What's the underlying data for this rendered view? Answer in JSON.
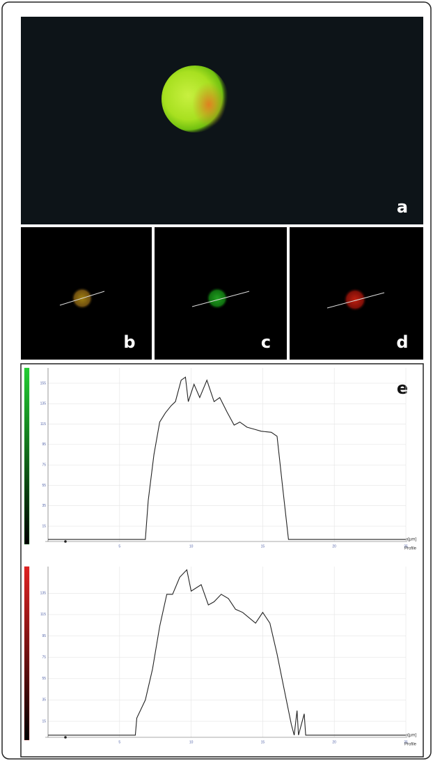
{
  "panels": {
    "a": "a",
    "b": "b",
    "c": "c",
    "d": "d",
    "e": "e"
  },
  "chart_data": [
    {
      "type": "line",
      "color": "#222222",
      "x": [
        0,
        6.8,
        7.0,
        7.4,
        7.8,
        8.2,
        8.6,
        8.9,
        9.3,
        9.6,
        9.8,
        10.2,
        10.6,
        11.1,
        11.6,
        12.0,
        12.5,
        13.0,
        13.4,
        13.9,
        14.4,
        14.9,
        15.6,
        16.0,
        16.4,
        16.8,
        25
      ],
      "values": [
        2,
        2,
        40,
        85,
        117,
        126,
        133,
        137,
        158,
        161,
        137,
        154,
        141,
        158,
        137,
        141,
        127,
        114,
        117,
        112,
        110,
        108,
        107,
        103,
        52,
        2,
        2
      ],
      "xlim": [
        0,
        25
      ],
      "ylim": [
        0,
        170
      ],
      "xticks": [
        5,
        10,
        15,
        20,
        25
      ],
      "yticks": [
        15,
        35,
        55,
        75,
        95,
        115,
        135,
        155
      ],
      "xlabel": "x[µm]",
      "annotation": "Profile",
      "grid": true,
      "bar_color": "#22cc33"
    },
    {
      "type": "line",
      "color": "#222222",
      "x": [
        0,
        6.1,
        6.2,
        6.8,
        7.3,
        7.8,
        8.3,
        8.7,
        9.2,
        9.7,
        10.0,
        10.7,
        11.2,
        11.6,
        12.1,
        12.6,
        13.1,
        13.6,
        14.5,
        15.0,
        15.5,
        16.0,
        16.5,
        17.0,
        17.2,
        17.4,
        17.5,
        17.9,
        18.0,
        25
      ],
      "values": [
        2,
        2,
        18,
        35,
        64,
        104,
        134,
        134,
        150,
        157,
        137,
        143,
        124,
        127,
        134,
        130,
        120,
        117,
        107,
        117,
        107,
        78,
        45,
        12,
        2,
        25,
        2,
        22,
        2,
        2
      ],
      "xlim": [
        0,
        25
      ],
      "ylim": [
        0,
        160
      ],
      "xticks": [
        5,
        10,
        15,
        20,
        25
      ],
      "yticks": [
        15,
        35,
        55,
        75,
        95,
        115,
        135
      ],
      "xlabel": "x[µm]",
      "annotation": "Profile",
      "grid": true,
      "bar_color": "#dd2222"
    }
  ]
}
